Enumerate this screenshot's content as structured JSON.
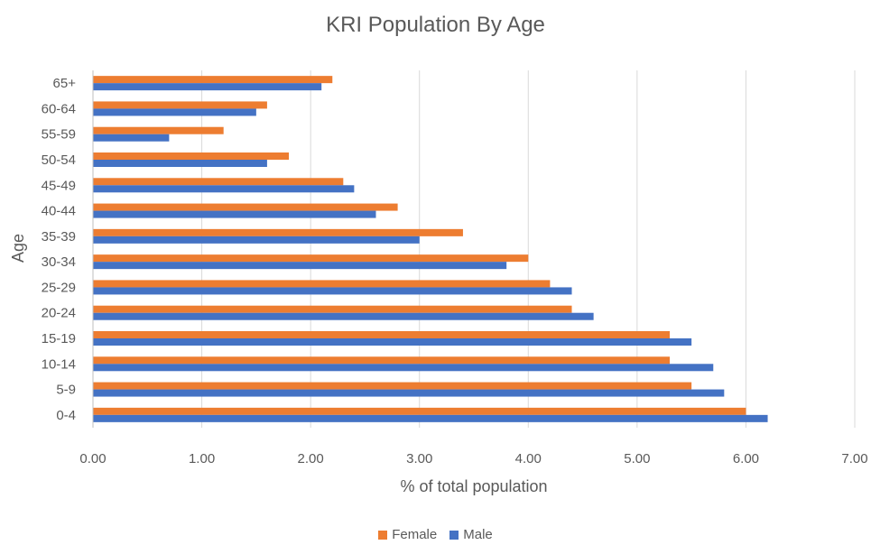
{
  "chart_data": {
    "type": "bar",
    "orientation": "horizontal",
    "title": "KRI Population By Age",
    "xlabel": "% of total population",
    "ylabel": "Age",
    "xlim": [
      0,
      7
    ],
    "xticks": [
      "0.00",
      "1.00",
      "2.00",
      "3.00",
      "4.00",
      "5.00",
      "6.00",
      "7.00"
    ],
    "categories": [
      "0-4",
      "5-9",
      "10-14",
      "15-19",
      "20-24",
      "25-29",
      "30-34",
      "35-39",
      "40-44",
      "45-49",
      "50-54",
      "55-59",
      "60-64",
      "65+"
    ],
    "series": [
      {
        "name": "Female",
        "color": "#ED7D31",
        "values": [
          6.0,
          5.5,
          5.3,
          5.3,
          4.4,
          4.2,
          4.0,
          3.4,
          2.8,
          2.3,
          1.8,
          1.2,
          1.6,
          2.2
        ]
      },
      {
        "name": "Male",
        "color": "#4472C4",
        "values": [
          6.2,
          5.8,
          5.7,
          5.5,
          4.6,
          4.4,
          3.8,
          3.0,
          2.6,
          2.4,
          1.6,
          0.7,
          1.5,
          2.1
        ]
      }
    ],
    "grid": "vertical",
    "legend": "bottom"
  }
}
